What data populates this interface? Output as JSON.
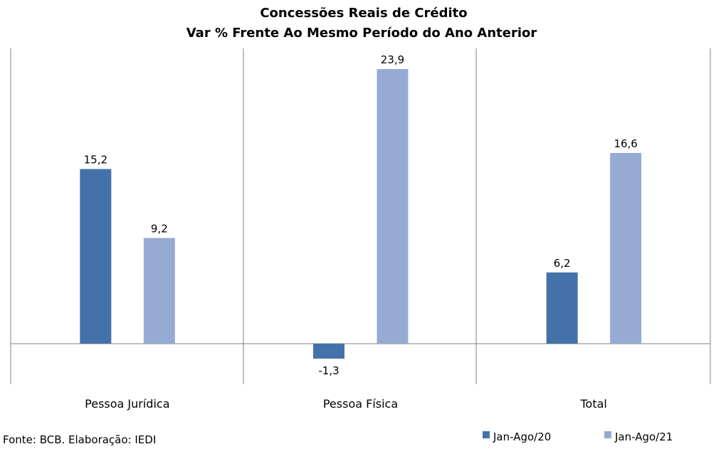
{
  "chart_data": {
    "type": "bar",
    "title": "Concessões Reais de Crédito",
    "subtitle": "Var % Frente Ao Mesmo Período do Ano Anterior",
    "categories": [
      "Pessoa Jurídica",
      "Pessoa Física",
      "Total"
    ],
    "series": [
      {
        "name": "Jan-Ago/20",
        "values": [
          15.2,
          -1.3,
          6.2
        ],
        "labels": [
          "15,2",
          "-1,3",
          "6,2"
        ],
        "color": "#4472a8"
      },
      {
        "name": "Jan-Ago/21",
        "values": [
          9.2,
          23.9,
          16.6
        ],
        "labels": [
          "9,2",
          "23,9",
          "16,6"
        ],
        "color": "#96abd3"
      }
    ],
    "ylim": [
      -3.5,
      25.7
    ],
    "grid": false,
    "legend_position": "bottom-right"
  },
  "source_note": "Fonte: BCB. Elaboração: IEDI"
}
